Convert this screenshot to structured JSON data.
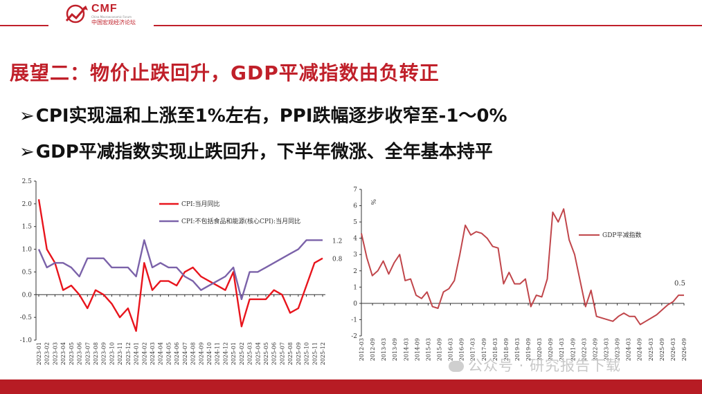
{
  "header": {
    "logo_text": "CMF",
    "logo_subtitle": "China Macroeconomic Forum",
    "logo_cn": "中国宏观经济论坛"
  },
  "title": "展望二：物价止跌回升，GDP平减指数由负转正",
  "bullets": [
    {
      "mark": "➢",
      "text": "CPI实现温和上涨至1%左右，PPI跌幅逐步收窄至-1～0%"
    },
    {
      "mark": "➢",
      "text": "GDP平减指数实现止跌回升，下半年微涨、全年基本持平"
    }
  ],
  "watermark": "公众号 · 研究报告下载",
  "colors": {
    "brand_red": "#c0202a",
    "cpi": "#e8141c",
    "core": "#7b62a9",
    "gdp": "#c0454a"
  },
  "chart_data": [
    {
      "type": "line",
      "categories": [
        "2023-01",
        "2023-02",
        "2023-03",
        "2023-04",
        "2023-05",
        "2023-06",
        "2023-07",
        "2023-08",
        "2023-09",
        "2023-10",
        "2023-11",
        "2023-12",
        "2024-01",
        "2024-02",
        "2024-03",
        "2024-04",
        "2024-05",
        "2024-06",
        "2024-07",
        "2024-08",
        "2024-09",
        "2024-10",
        "2024-11",
        "2024-12",
        "2025-01",
        "2025-02",
        "2025-03",
        "2025-04",
        "2025-05",
        "2025-06",
        "2025-07",
        "2025-08",
        "2025-09",
        "2025-10",
        "2025-11",
        "2025-12"
      ],
      "series": [
        {
          "name": "CPI:当月同比",
          "color": "#e8141c",
          "values": [
            2.1,
            1.0,
            0.7,
            0.1,
            0.2,
            0.0,
            -0.3,
            0.1,
            0.0,
            -0.2,
            -0.5,
            -0.3,
            -0.8,
            0.7,
            0.1,
            0.3,
            0.3,
            0.2,
            0.5,
            0.6,
            0.4,
            0.3,
            0.2,
            0.1,
            0.5,
            -0.7,
            -0.1,
            -0.1,
            -0.1,
            0.1,
            0.0,
            -0.4,
            -0.3,
            0.2,
            0.7,
            0.8
          ],
          "end_label": "0.8"
        },
        {
          "name": "CPI:不包括食品和能源(核心CPI):当月同比",
          "color": "#7b62a9",
          "values": [
            1.0,
            0.6,
            0.7,
            0.7,
            0.6,
            0.4,
            0.8,
            0.8,
            0.8,
            0.6,
            0.6,
            0.6,
            0.4,
            1.2,
            0.6,
            0.7,
            0.6,
            0.6,
            0.4,
            0.3,
            0.1,
            0.2,
            0.3,
            0.4,
            0.6,
            -0.1,
            0.5,
            0.5,
            0.6,
            0.7,
            0.8,
            0.9,
            1.0,
            1.2,
            1.2,
            1.2
          ],
          "end_label": "1.2"
        }
      ],
      "ylim": [
        -1.0,
        2.5
      ],
      "yticks": [
        "2.5",
        "2.0",
        "1.5",
        "1.0",
        "0.5",
        "0.0",
        "-0.5",
        "-1.0"
      ],
      "legend": "top-right"
    },
    {
      "type": "line",
      "unit": "%",
      "categories": [
        "2012-03",
        "2012-06",
        "2012-09",
        "2012-12",
        "2013-03",
        "2013-06",
        "2013-09",
        "2013-12",
        "2014-03",
        "2014-06",
        "2014-09",
        "2014-12",
        "2015-03",
        "2015-06",
        "2015-09",
        "2015-12",
        "2016-03",
        "2016-06",
        "2016-09",
        "2016-12",
        "2017-03",
        "2017-06",
        "2017-09",
        "2017-12",
        "2018-03",
        "2018-06",
        "2018-09",
        "2018-12",
        "2019-03",
        "2019-06",
        "2019-09",
        "2019-12",
        "2020-03",
        "2020-06",
        "2020-09",
        "2020-12",
        "2021-03",
        "2021-06",
        "2021-09",
        "2021-12",
        "2022-03",
        "2022-06",
        "2022-09",
        "2022-12",
        "2023-03",
        "2023-06",
        "2023-09",
        "2023-12",
        "2024-03",
        "2024-06",
        "2024-09",
        "2024-12",
        "2025-03",
        "2025-06",
        "2025-09",
        "2025-12",
        "2026-03",
        "2026-06",
        "2026-09",
        "2026-12"
      ],
      "tick_labels": [
        "2012-03",
        "2012-09",
        "2013-03",
        "2013-09",
        "2014-03",
        "2014-09",
        "2015-03",
        "2015-09",
        "2016-03",
        "2016-09",
        "2017-03",
        "2017-09",
        "2018-03",
        "2018-09",
        "2019-03",
        "2019-09",
        "2020-03",
        "2020-09",
        "2021-03",
        "2021-09",
        "2022-03",
        "2022-09",
        "2023-03",
        "2023-09",
        "2024-03",
        "2024-09",
        "2025-03",
        "2025-09",
        "2026-03",
        "2026-09"
      ],
      "series": [
        {
          "name": "GDP平减指数",
          "color": "#c0454a",
          "values": [
            4.3,
            2.8,
            1.7,
            2.0,
            2.6,
            1.8,
            2.5,
            3.0,
            1.4,
            1.5,
            0.5,
            0.3,
            0.7,
            -0.2,
            -0.3,
            0.7,
            0.9,
            1.4,
            3.0,
            4.8,
            4.2,
            4.4,
            4.3,
            4.0,
            3.5,
            3.4,
            1.2,
            1.9,
            1.2,
            1.2,
            1.5,
            -0.2,
            0.5,
            0.4,
            1.5,
            5.6,
            5.0,
            5.8,
            3.9,
            3.0,
            1.4,
            -0.2,
            0.8,
            -0.8,
            -0.9,
            -1.0,
            -1.1,
            -0.8,
            -0.6,
            -0.8,
            -0.8,
            -1.3,
            -1.1,
            -0.9,
            -0.7,
            -0.4,
            -0.1,
            0.1,
            0.5,
            0.5
          ],
          "end_label": "0.5"
        }
      ],
      "ylim": [
        -2,
        7
      ],
      "yticks": [
        "7",
        "6",
        "5",
        "4",
        "3",
        "2",
        "1",
        "0",
        "-1",
        "-2"
      ],
      "legend": "right"
    }
  ]
}
